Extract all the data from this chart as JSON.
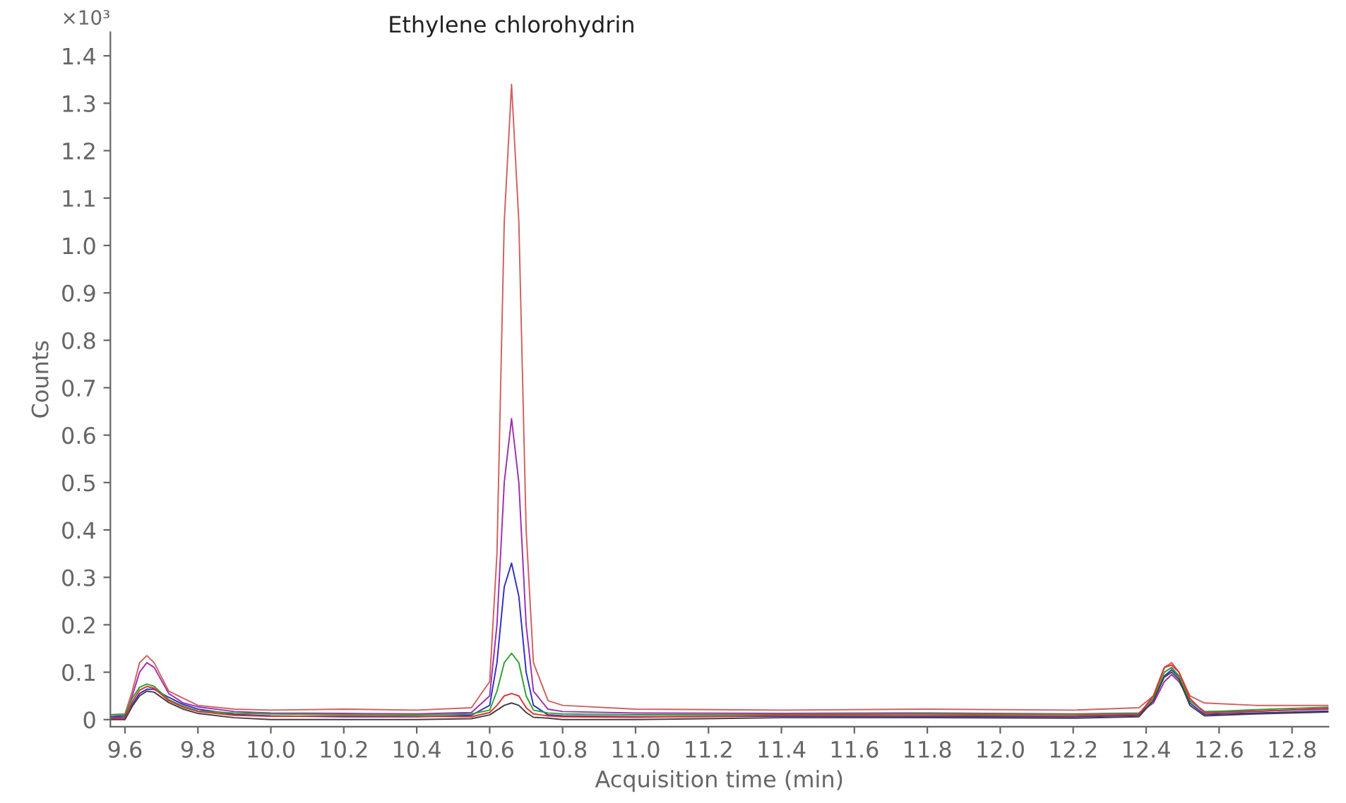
{
  "chart_data": {
    "type": "line",
    "xlabel": "Acquisition time (min)",
    "ylabel": "Counts",
    "annotations": [
      "×10³",
      {
        "text": "Ethylene chlorohydrin",
        "x": 10.66,
        "y": 1.34
      }
    ],
    "x": [
      9.56,
      9.6,
      9.62,
      9.64,
      9.66,
      9.68,
      9.72,
      9.76,
      9.8,
      9.9,
      10.0,
      10.2,
      10.4,
      10.55,
      10.6,
      10.62,
      10.64,
      10.66,
      10.68,
      10.7,
      10.72,
      10.76,
      10.8,
      11.0,
      11.4,
      11.8,
      12.2,
      12.38,
      12.42,
      12.45,
      12.47,
      12.49,
      12.52,
      12.56,
      12.7,
      12.9
    ],
    "series": [
      {
        "color": "#d06060",
        "values": [
          0.01,
          0.012,
          0.06,
          0.12,
          0.135,
          0.12,
          0.06,
          0.045,
          0.03,
          0.022,
          0.02,
          0.022,
          0.02,
          0.025,
          0.08,
          0.35,
          1.05,
          1.34,
          1.05,
          0.4,
          0.12,
          0.04,
          0.03,
          0.022,
          0.02,
          0.022,
          0.02,
          0.025,
          0.05,
          0.11,
          0.12,
          0.1,
          0.05,
          0.035,
          0.03,
          0.03
        ]
      },
      {
        "color": "#9b30b0",
        "values": [
          0.004,
          0.005,
          0.05,
          0.1,
          0.12,
          0.11,
          0.055,
          0.035,
          0.027,
          0.017,
          0.014,
          0.013,
          0.012,
          0.015,
          0.05,
          0.2,
          0.5,
          0.635,
          0.5,
          0.2,
          0.06,
          0.022,
          0.017,
          0.014,
          0.013,
          0.014,
          0.012,
          0.014,
          0.035,
          0.08,
          0.095,
          0.08,
          0.04,
          0.017,
          0.018,
          0.022
        ]
      },
      {
        "color": "#3030c0",
        "values": [
          0.006,
          0.008,
          0.032,
          0.055,
          0.064,
          0.064,
          0.047,
          0.032,
          0.022,
          0.011,
          0.008,
          0.006,
          0.006,
          0.009,
          0.03,
          0.12,
          0.28,
          0.33,
          0.26,
          0.1,
          0.03,
          0.01,
          0.008,
          0.006,
          0.007,
          0.006,
          0.006,
          0.009,
          0.04,
          0.092,
          0.105,
          0.09,
          0.035,
          0.011,
          0.014,
          0.018
        ]
      },
      {
        "color": "#30a030",
        "values": [
          0.01,
          0.011,
          0.045,
          0.068,
          0.075,
          0.07,
          0.042,
          0.028,
          0.018,
          0.014,
          0.012,
          0.011,
          0.01,
          0.012,
          0.02,
          0.06,
          0.12,
          0.14,
          0.12,
          0.05,
          0.02,
          0.014,
          0.012,
          0.01,
          0.011,
          0.012,
          0.011,
          0.013,
          0.045,
          0.1,
          0.11,
          0.092,
          0.04,
          0.016,
          0.021,
          0.026
        ]
      },
      {
        "color": "#e03030",
        "values": [
          0.002,
          0.003,
          0.038,
          0.062,
          0.07,
          0.066,
          0.04,
          0.026,
          0.017,
          0.009,
          0.007,
          0.008,
          0.007,
          0.006,
          0.015,
          0.03,
          0.05,
          0.055,
          0.05,
          0.025,
          0.012,
          0.008,
          0.006,
          0.005,
          0.009,
          0.009,
          0.008,
          0.011,
          0.05,
          0.11,
          0.115,
          0.1,
          0.045,
          0.014,
          0.017,
          0.024
        ]
      },
      {
        "color": "#404040",
        "values": [
          0.0,
          0.0,
          0.028,
          0.05,
          0.06,
          0.058,
          0.036,
          0.022,
          0.013,
          0.004,
          0.0,
          0.0,
          0.0,
          0.002,
          0.01,
          0.02,
          0.03,
          0.035,
          0.03,
          0.015,
          0.005,
          0.003,
          0.0,
          0.0,
          0.004,
          0.004,
          0.003,
          0.006,
          0.04,
          0.09,
          0.1,
          0.085,
          0.03,
          0.008,
          0.012,
          0.016
        ]
      }
    ],
    "xlim": [
      9.56,
      12.9
    ],
    "ylim": [
      -0.015,
      1.45
    ],
    "xticks": [
      9.6,
      9.8,
      {
        "value": 10,
        "label": "10.0"
      },
      10.2,
      10.4,
      10.6,
      10.8,
      {
        "value": 11,
        "label": "11.0"
      },
      11.2,
      11.4,
      11.6,
      11.8,
      {
        "value": 12,
        "label": "12.0"
      },
      12.2,
      12.4,
      12.6,
      12.8
    ],
    "yticks": [
      0,
      0.1,
      0.2,
      0.3,
      0.4,
      0.5,
      0.6,
      0.7,
      0.8,
      0.9,
      {
        "value": 1,
        "label": "1.0"
      },
      1.1,
      1.2,
      1.3,
      1.4
    ],
    "grid": false,
    "legend": false
  }
}
